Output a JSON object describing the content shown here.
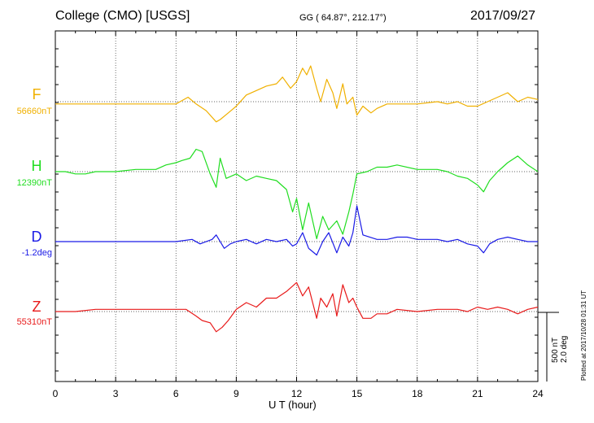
{
  "header": {
    "left": "College (CMO)  [USGS]",
    "center": "GG ( 64.87°, 212.17°)",
    "right": "2017/09/27"
  },
  "footer": {
    "scale_nt": "500 nT",
    "scale_deg": "2.0 deg",
    "plotted": "Plotted at 2017/10/28 01:31  UT"
  },
  "chart_data": {
    "type": "line",
    "xlabel": "U T (hour)",
    "xlim": [
      0,
      24
    ],
    "x_ticks": [
      "0",
      "3",
      "6",
      "9",
      "12",
      "15",
      "18",
      "21",
      "24"
    ],
    "grid": true,
    "channels": [
      {
        "name": "F",
        "baseline": "56660nT",
        "color": "#f0b000",
        "x": [
          0,
          1,
          2,
          3,
          4,
          5,
          6,
          6.6,
          7,
          7.5,
          8,
          8.2,
          8.6,
          9,
          9.5,
          10,
          10.5,
          11,
          11.3,
          11.7,
          12,
          12.3,
          12.5,
          12.7,
          13,
          13.2,
          13.5,
          13.8,
          14,
          14.3,
          14.5,
          14.8,
          15,
          15.3,
          15.7,
          16,
          16.5,
          17,
          18,
          19,
          19.5,
          20,
          20.5,
          21,
          21.5,
          22,
          22.5,
          23,
          23.5,
          24
        ],
        "values": [
          -5,
          -5,
          -5,
          -5,
          -5,
          -5,
          -5,
          10,
          -5,
          -20,
          -45,
          -40,
          -25,
          -10,
          15,
          25,
          35,
          40,
          55,
          30,
          45,
          75,
          60,
          80,
          30,
          0,
          50,
          20,
          -15,
          40,
          -5,
          10,
          -30,
          -10,
          -25,
          -15,
          -5,
          -5,
          -5,
          0,
          -5,
          0,
          -10,
          -10,
          0,
          10,
          20,
          0,
          10,
          5
        ]
      },
      {
        "name": "H",
        "baseline": "12390nT",
        "color": "#20dd20",
        "x": [
          0,
          0.5,
          1,
          1.5,
          2,
          3,
          4,
          5,
          5.5,
          6,
          6.3,
          6.7,
          7,
          7.3,
          7.7,
          8,
          8.2,
          8.5,
          9,
          9.5,
          10,
          10.5,
          11,
          11.5,
          11.8,
          12,
          12.3,
          12.6,
          13,
          13.3,
          13.6,
          14,
          14.3,
          14.6,
          14.8,
          15,
          15.5,
          16,
          16.5,
          17,
          18,
          19,
          19.5,
          20,
          20.5,
          21,
          21.3,
          21.6,
          22,
          22.5,
          23,
          23.5,
          24
        ],
        "values": [
          0,
          0,
          -5,
          -5,
          0,
          0,
          5,
          5,
          15,
          20,
          25,
          30,
          50,
          45,
          -5,
          -35,
          30,
          -15,
          -5,
          -20,
          -10,
          -15,
          -20,
          -40,
          -90,
          -60,
          -130,
          -70,
          -150,
          -100,
          -130,
          -110,
          -140,
          -90,
          -50,
          -5,
          0,
          10,
          10,
          15,
          5,
          5,
          0,
          -10,
          -15,
          -30,
          -45,
          -20,
          0,
          20,
          35,
          15,
          0
        ]
      },
      {
        "name": "D",
        "baseline": "-1.2deg",
        "color": "#1a1ae6",
        "x": [
          0,
          1,
          2,
          3,
          4,
          5,
          6,
          6.8,
          7.2,
          7.8,
          8,
          8.4,
          8.7,
          9,
          9.5,
          10,
          10.5,
          11,
          11.5,
          11.8,
          12,
          12.3,
          12.6,
          13,
          13.3,
          13.6,
          14,
          14.3,
          14.6,
          14.8,
          15,
          15.3,
          16,
          16.5,
          17,
          17.5,
          18,
          19,
          19.5,
          20,
          20.5,
          21,
          21.3,
          21.6,
          22,
          22.5,
          23,
          23.5,
          24
        ],
        "values": [
          0,
          0,
          0,
          0,
          0,
          0,
          0,
          5,
          -5,
          5,
          15,
          -15,
          -5,
          0,
          5,
          -5,
          5,
          0,
          5,
          -10,
          -5,
          20,
          -15,
          -30,
          0,
          20,
          -25,
          10,
          -10,
          20,
          80,
          15,
          5,
          5,
          10,
          10,
          5,
          5,
          0,
          5,
          -5,
          -10,
          -25,
          -5,
          5,
          10,
          5,
          0,
          0
        ]
      },
      {
        "name": "Z",
        "baseline": "55310nT",
        "color": "#e81a1a",
        "x": [
          0,
          1,
          2,
          3,
          4,
          5,
          6,
          6.5,
          7,
          7.3,
          7.7,
          8,
          8.3,
          8.6,
          9,
          9.5,
          10,
          10.5,
          11,
          11.5,
          12,
          12.3,
          12.6,
          13,
          13.2,
          13.5,
          13.8,
          14,
          14.3,
          14.6,
          14.8,
          15,
          15.3,
          15.7,
          16,
          16.5,
          17,
          18,
          19,
          20,
          20.5,
          21,
          21.5,
          22,
          22.5,
          23,
          23.5,
          24
        ],
        "values": [
          0,
          0,
          5,
          5,
          5,
          5,
          5,
          5,
          -10,
          -20,
          -25,
          -45,
          -35,
          -20,
          5,
          20,
          10,
          30,
          30,
          45,
          65,
          35,
          55,
          -15,
          30,
          10,
          40,
          -10,
          60,
          20,
          30,
          10,
          -15,
          -15,
          -5,
          -5,
          5,
          0,
          5,
          5,
          0,
          10,
          5,
          10,
          5,
          -5,
          5,
          10
        ]
      }
    ]
  }
}
